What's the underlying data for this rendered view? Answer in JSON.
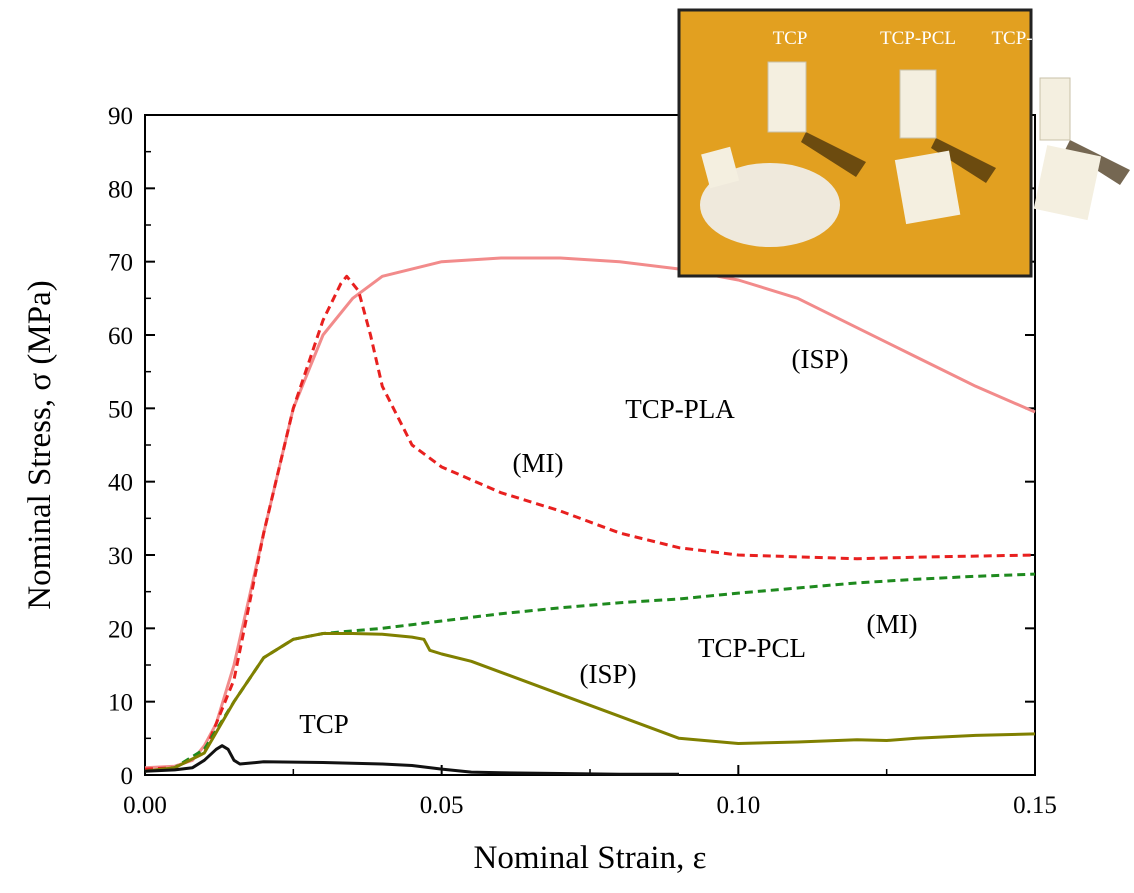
{
  "chart_data": {
    "type": "line",
    "xlabel": "Nominal Strain, ε",
    "ylabel": "Nominal Stress, σ (MPa)",
    "xlim": [
      0,
      0.15
    ],
    "ylim": [
      0,
      90
    ],
    "xticks": [
      {
        "value": 0,
        "label": "0.00"
      },
      0.05,
      {
        "value": 0.1,
        "label": "0.10"
      },
      0.15
    ],
    "yticks": [
      0,
      10,
      20,
      30,
      40,
      50,
      60,
      70,
      80,
      90
    ],
    "annotations": [
      "(ISP)",
      "TCP-PLA",
      "(MI)",
      "TCP-PCL",
      "(MI)",
      "(ISP)",
      "TCP"
    ],
    "inset_labels": [
      "TCP",
      "TCP-PCL",
      "TCP-PLA"
    ],
    "series": [
      {
        "color": "#f28b8b",
        "dash": false,
        "x": [
          0,
          0.005,
          0.008,
          0.01,
          0.012,
          0.015,
          0.02,
          0.025,
          0.03,
          0.035,
          0.04,
          0.05,
          0.06,
          0.07,
          0.08,
          0.09,
          0.1,
          0.11,
          0.12,
          0.13,
          0.14,
          0.15
        ],
        "values": [
          1,
          1.2,
          2,
          4,
          7,
          15,
          33,
          50,
          60,
          65,
          68,
          70,
          70.5,
          70.5,
          70,
          69,
          67.5,
          65,
          61,
          57,
          53,
          49.5
        ]
      },
      {
        "color": "#e8201f",
        "dash": true,
        "x": [
          0,
          0.005,
          0.01,
          0.015,
          0.02,
          0.025,
          0.03,
          0.033,
          0.034,
          0.036,
          0.038,
          0.04,
          0.045,
          0.05,
          0.06,
          0.07,
          0.08,
          0.09,
          0.1,
          0.12,
          0.13,
          0.15
        ],
        "values": [
          0.8,
          1,
          3,
          13,
          33,
          50,
          62,
          67,
          68,
          66,
          60,
          53,
          45,
          42,
          38.5,
          36,
          33,
          31,
          30,
          29.5,
          29.7,
          30
        ]
      },
      {
        "color": "#1e8a1e",
        "dash": true,
        "x": [
          0,
          0.005,
          0.01,
          0.015,
          0.02,
          0.025,
          0.03,
          0.04,
          0.05,
          0.06,
          0.07,
          0.08,
          0.09,
          0.1,
          0.11,
          0.12,
          0.13,
          0.14,
          0.15
        ],
        "values": [
          0.5,
          1,
          3.5,
          10,
          16,
          18.5,
          19.3,
          20,
          21,
          22,
          22.8,
          23.5,
          24,
          24.8,
          25.5,
          26.2,
          26.7,
          27.1,
          27.4
        ]
      },
      {
        "color": "#808000",
        "dash": false,
        "x": [
          0,
          0.005,
          0.01,
          0.015,
          0.02,
          0.025,
          0.03,
          0.035,
          0.04,
          0.045,
          0.047,
          0.048,
          0.05,
          0.055,
          0.06,
          0.065,
          0.07,
          0.08,
          0.09,
          0.1,
          0.11,
          0.12,
          0.125,
          0.13,
          0.14,
          0.15
        ],
        "values": [
          0.5,
          1,
          3,
          10,
          16,
          18.5,
          19.3,
          19.3,
          19.2,
          18.8,
          18.5,
          17,
          16.5,
          15.5,
          14,
          12.5,
          11,
          8,
          5,
          4.3,
          4.5,
          4.8,
          4.7,
          5,
          5.4,
          5.6
        ]
      },
      {
        "color": "#111111",
        "dash": false,
        "x": [
          0,
          0.005,
          0.008,
          0.01,
          0.012,
          0.013,
          0.014,
          0.015,
          0.016,
          0.02,
          0.03,
          0.04,
          0.045,
          0.05,
          0.055,
          0.06,
          0.07,
          0.08,
          0.09
        ],
        "values": [
          0.5,
          0.7,
          1,
          2,
          3.5,
          4,
          3.5,
          2,
          1.5,
          1.8,
          1.7,
          1.5,
          1.3,
          0.8,
          0.4,
          0.3,
          0.2,
          0.1,
          0.1
        ]
      }
    ]
  }
}
